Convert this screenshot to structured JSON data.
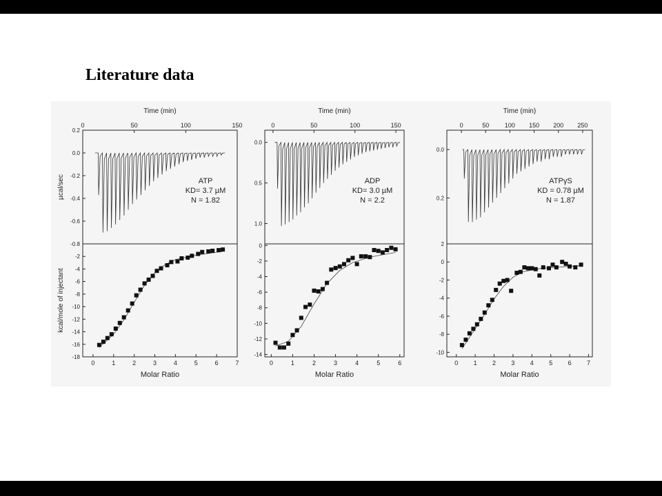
{
  "slide": {
    "title": "Literature data"
  },
  "figure": {
    "colors": {
      "axis": "#222222",
      "trace": "#333333",
      "marker": "#111111",
      "background": "#f5f5f5"
    },
    "shared_labels": {
      "top_xlabel": "Time (min)",
      "top_ylabel": "µcal/sec",
      "bottom_ylabel": "kcal/mole of injectant",
      "bottom_xlabel": "Molar Ratio"
    }
  },
  "chart_data": [
    {
      "type": "line",
      "panel": "ATP raw heat",
      "xlabel": "Time (min)",
      "ylabel": "µcal/sec",
      "xlim": [
        0,
        150
      ],
      "ylim": [
        -0.8,
        0.2
      ],
      "xticks": [
        "0",
        "50",
        "100",
        "150"
      ],
      "yticks": [
        "0.2",
        "0.0",
        "-0.2",
        "-0.4",
        "-0.6",
        "-0.8"
      ],
      "baseline": 0.0,
      "injection_start": 15,
      "injection_end": 138,
      "peaks": [
        -0.37,
        -0.7,
        -0.69,
        -0.66,
        -0.63,
        -0.59,
        -0.55,
        -0.5,
        -0.45,
        -0.41,
        -0.37,
        -0.33,
        -0.29,
        -0.25,
        -0.22,
        -0.19,
        -0.16,
        -0.14,
        -0.12,
        -0.1,
        -0.08,
        -0.07,
        -0.06,
        -0.05,
        -0.04,
        -0.04,
        -0.03,
        -0.03,
        -0.03,
        -0.02
      ],
      "annotation": [
        "ATP",
        "KD= 3.7 µM",
        "N = 1.82"
      ]
    },
    {
      "type": "line",
      "panel": "ADP raw heat",
      "xlabel": "Time (min)",
      "ylabel": "",
      "xlim": [
        -10,
        160
      ],
      "ylim": [
        1.25,
        -0.15
      ],
      "xticks": [
        "0",
        "50",
        "100",
        "150"
      ],
      "yticks": [
        "0.0",
        "0.5",
        "1.0"
      ],
      "baseline": 0.0,
      "injection_start": 5,
      "injection_end": 155,
      "peaks": [
        0.57,
        1.03,
        1.01,
        0.98,
        0.95,
        0.9,
        0.86,
        0.8,
        0.75,
        0.69,
        0.62,
        0.56,
        0.5,
        0.45,
        0.4,
        0.35,
        0.31,
        0.27,
        0.24,
        0.21,
        0.18,
        0.16,
        0.14,
        0.12,
        0.11,
        0.1,
        0.09,
        0.08,
        0.07,
        0.06,
        0.06,
        0.05
      ],
      "annotation": [
        "ADP",
        "KD= 3.0 µM",
        "N = 2.2"
      ]
    },
    {
      "type": "line",
      "panel": "ATPγS raw heat",
      "xlabel": "Time (min)",
      "ylabel": "",
      "xlim": [
        -30,
        270
      ],
      "ylim": [
        0.39,
        -0.08
      ],
      "xticks": [
        "0",
        "50",
        "100",
        "150",
        "200",
        "250"
      ],
      "yticks": [
        "0.0",
        "0.2"
      ],
      "baseline": 0.0,
      "injection_start": 5,
      "injection_end": 255,
      "peaks": [
        0.12,
        0.3,
        0.3,
        0.29,
        0.28,
        0.26,
        0.24,
        0.22,
        0.2,
        0.18,
        0.16,
        0.14,
        0.12,
        0.1,
        0.09,
        0.08,
        0.07,
        0.06,
        0.05,
        0.05,
        0.04,
        0.04,
        0.03,
        0.03,
        0.03,
        0.02,
        0.02,
        0.02,
        0.02,
        0.02
      ],
      "annotation": [
        "ATPγS",
        "KD = 0.78 µM",
        "N = 1.87"
      ]
    },
    {
      "type": "scatter",
      "panel": "ATP integrated heat",
      "xlabel": "Molar Ratio",
      "ylabel": "kcal/mole of injectant",
      "xlim": [
        -0.5,
        7
      ],
      "ylim": [
        -18,
        0
      ],
      "xticks": [
        "0",
        "1",
        "2",
        "3",
        "4",
        "5",
        "6",
        "7"
      ],
      "yticks": [
        "-2",
        "-4",
        "-6",
        "-8",
        "-10",
        "-12",
        "-14",
        "-16",
        "-18"
      ],
      "x": [
        0.3,
        0.5,
        0.7,
        0.9,
        1.1,
        1.3,
        1.5,
        1.7,
        1.9,
        2.1,
        2.3,
        2.5,
        2.7,
        2.9,
        3.1,
        3.3,
        3.6,
        3.8,
        4.1,
        4.3,
        4.6,
        4.8,
        5.1,
        5.3,
        5.6,
        5.8,
        6.1,
        6.3
      ],
      "y": [
        -16.1,
        -15.6,
        -15,
        -14.4,
        -13.5,
        -12.6,
        -11.7,
        -10.6,
        -9.5,
        -8.2,
        -7.3,
        -6.3,
        -5.7,
        -5.1,
        -4.3,
        -3.9,
        -3.4,
        -2.9,
        -2.8,
        -2.3,
        -2.2,
        -1.9,
        -1.6,
        -1.3,
        -1.2,
        -1.1,
        -1.0,
        -0.9
      ],
      "fit": [
        [
          0.3,
          -16.5
        ],
        [
          1.0,
          -14.4
        ],
        [
          1.5,
          -12.1
        ],
        [
          2.0,
          -9.3
        ],
        [
          2.5,
          -6.6
        ],
        [
          3.0,
          -4.6
        ],
        [
          3.5,
          -3.3
        ],
        [
          4.0,
          -2.5
        ],
        [
          5.0,
          -1.8
        ],
        [
          6.3,
          -1.2
        ]
      ]
    },
    {
      "type": "scatter",
      "panel": "ADP integrated heat",
      "xlabel": "Molar Ratio",
      "ylabel": "",
      "xlim": [
        -0.3,
        6.2
      ],
      "ylim": [
        -14.3,
        0.2
      ],
      "xticks": [
        "0",
        "1",
        "2",
        "3",
        "4",
        "5",
        "6"
      ],
      "yticks": [
        "0",
        "-2",
        "-4",
        "-6",
        "-8",
        "-10",
        "-12",
        "-14"
      ],
      "x": [
        0.2,
        0.4,
        0.6,
        0.8,
        1.0,
        1.2,
        1.4,
        1.6,
        1.8,
        2.0,
        2.2,
        2.4,
        2.6,
        2.8,
        3.0,
        3.2,
        3.4,
        3.6,
        3.8,
        4.0,
        4.2,
        4.4,
        4.6,
        4.8,
        5.0,
        5.2,
        5.4,
        5.6,
        5.8
      ],
      "y": [
        -12.5,
        -13.1,
        -13.1,
        -12.6,
        -11.5,
        -10.9,
        -9.3,
        -7.9,
        -7.6,
        -5.8,
        -5.9,
        -5.6,
        -4.8,
        -3.1,
        -2.9,
        -2.7,
        -2.4,
        -1.9,
        -1.6,
        -2.4,
        -1.4,
        -1.4,
        -1.5,
        -0.6,
        -0.7,
        -0.9,
        -0.6,
        -0.3,
        -0.5
      ],
      "fit": [
        [
          0.2,
          -12.9
        ],
        [
          0.8,
          -12.3
        ],
        [
          1.4,
          -10.4
        ],
        [
          2.0,
          -7.5
        ],
        [
          2.6,
          -4.9
        ],
        [
          3.2,
          -3.2
        ],
        [
          3.8,
          -2.2
        ],
        [
          4.6,
          -1.5
        ],
        [
          5.8,
          -0.9
        ]
      ]
    },
    {
      "type": "scatter",
      "panel": "ATPγS integrated heat",
      "xlabel": "Molar Ratio",
      "ylabel": "",
      "xlim": [
        -0.5,
        7.2
      ],
      "ylim": [
        -10.5,
        2
      ],
      "xticks": [
        "0",
        "1",
        "2",
        "3",
        "4",
        "5",
        "6",
        "7"
      ],
      "yticks": [
        "2",
        "0",
        "-2",
        "-4",
        "-6",
        "-8",
        "-10"
      ],
      "x": [
        0.3,
        0.5,
        0.7,
        0.9,
        1.1,
        1.3,
        1.5,
        1.7,
        1.9,
        2.1,
        2.3,
        2.5,
        2.7,
        2.9,
        3.2,
        3.4,
        3.6,
        3.8,
        4.0,
        4.2,
        4.4,
        4.6,
        4.9,
        5.1,
        5.3,
        5.6,
        5.8,
        6.0,
        6.3,
        6.6
      ],
      "y": [
        -9.2,
        -8.6,
        -7.9,
        -7.4,
        -6.9,
        -6.3,
        -5.6,
        -4.8,
        -4.2,
        -3.1,
        -2.4,
        -2.1,
        -2.0,
        -3.2,
        -1.2,
        -1.1,
        -0.6,
        -0.7,
        -0.7,
        -0.8,
        -1.5,
        -0.6,
        -0.7,
        -0.3,
        -0.6,
        0.0,
        -0.2,
        -0.5,
        -0.6,
        -0.3
      ],
      "fit": [
        [
          0.3,
          -9.6
        ],
        [
          1.0,
          -7.4
        ],
        [
          1.5,
          -5.8
        ],
        [
          2.0,
          -4.1
        ],
        [
          2.5,
          -2.7
        ],
        [
          3.0,
          -1.7
        ],
        [
          3.5,
          -1.1
        ],
        [
          4.5,
          -0.7
        ],
        [
          6.6,
          -0.4
        ]
      ]
    }
  ]
}
